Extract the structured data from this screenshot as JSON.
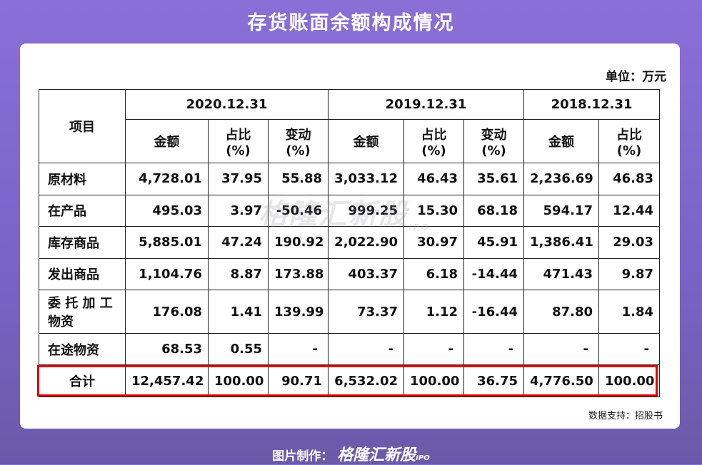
{
  "page": {
    "title": "存货账面余额构成情况"
  },
  "unit_note": "单位：万元",
  "watermark": {
    "text": "格隆汇新股",
    "sub": "IPO"
  },
  "table": {
    "item_header": "项目",
    "period_headers": [
      "2020.12.31",
      "2019.12.31",
      "2018.12.31"
    ],
    "sub_headers": {
      "amount": "金额",
      "ratio": [
        "占比",
        "(%)"
      ],
      "change": [
        "变动",
        "(%)"
      ]
    },
    "rows": [
      {
        "label": "原材料",
        "values": [
          "4,728.01",
          "37.95",
          "55.88",
          "3,033.12",
          "46.43",
          "35.61",
          "2,236.69",
          "46.83"
        ]
      },
      {
        "label": "在产品",
        "values": [
          "495.03",
          "3.97",
          "-50.46",
          "999.25",
          "15.30",
          "68.18",
          "594.17",
          "12.44"
        ]
      },
      {
        "label": "库存商品",
        "values": [
          "5,885.01",
          "47.24",
          "190.92",
          "2,022.90",
          "30.97",
          "45.91",
          "1,386.41",
          "29.03"
        ]
      },
      {
        "label": "发出商品",
        "values": [
          "1,104.76",
          "8.87",
          "173.88",
          "403.37",
          "6.18",
          "-14.44",
          "471.43",
          "9.87"
        ]
      },
      {
        "label": "委 托 加 工 物资",
        "values": [
          "176.08",
          "1.41",
          "139.99",
          "73.37",
          "1.12",
          "-16.44",
          "87.80",
          "1.84"
        ]
      },
      {
        "label": "在途物资",
        "values": [
          "68.53",
          "0.55",
          "-",
          "-",
          "-",
          "-",
          "-",
          "-"
        ]
      }
    ],
    "total": {
      "label": "合计",
      "values": [
        "12,457.42",
        "100.00",
        "90.71",
        "6,532.02",
        "100.00",
        "36.75",
        "4,776.50",
        "100.00"
      ]
    }
  },
  "source_note": "数据支持：招股书",
  "footer": {
    "prefix": "图片制作：",
    "brand": "格隆汇新股",
    "brand_sub": "IPO"
  },
  "colors": {
    "highlight": "#e00000",
    "background": "#8a6fd6"
  }
}
